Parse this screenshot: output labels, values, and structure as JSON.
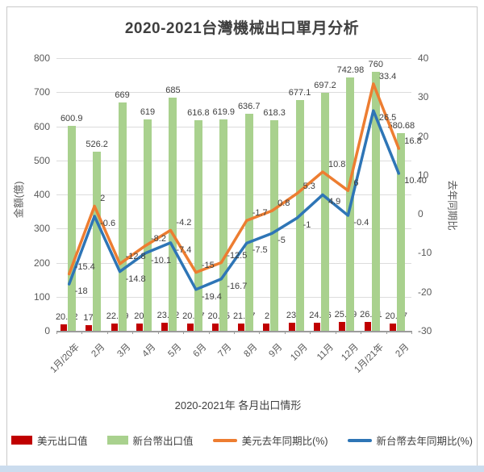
{
  "chart_data": {
    "type": "bar+line combo",
    "title": "2020-2021台灣機械出口單月分析",
    "xlabel": "2020-2021年 各月出口情形",
    "categories": [
      "1月/20年",
      "2月",
      "3月",
      "4月",
      "5月",
      "6月",
      "7月",
      "8月",
      "9月",
      "10月",
      "11月",
      "12月",
      "1月/21年",
      "2月"
    ],
    "series": [
      {
        "name": "美元出口值",
        "type": "bar",
        "axis": "left",
        "color": "#C00000",
        "values": [
          "20.02",
          "17.5",
          "22.19",
          "20.5",
          "23.92",
          "20.67",
          "20.95",
          "21.57",
          "21",
          "23.3",
          "24.16",
          "25.99",
          "26.71",
          "20.47"
        ]
      },
      {
        "name": "新台幣出口值",
        "type": "bar",
        "axis": "left",
        "color": "#A9D18E",
        "values": [
          "600.9",
          "526.2",
          "669",
          "619",
          "685",
          "616.8",
          "619.9",
          "636.7",
          "618.3",
          "677.1",
          "697.2",
          "742.98",
          "760",
          "580.68"
        ]
      },
      {
        "name": "美元去年同期比(%)",
        "type": "line",
        "axis": "right",
        "color": "#ED7D31",
        "values": [
          "-15.4",
          "2",
          "-12.8",
          "-8.2",
          "-4.2",
          "-15",
          "-12.5",
          "-1.7",
          "0.8",
          "5.3",
          "10.8",
          "6",
          "33.4",
          "16.8"
        ]
      },
      {
        "name": "新台幣去年同期比(%)",
        "type": "line",
        "axis": "right",
        "color": "#2E75B6",
        "values": [
          "-18",
          "-0.6",
          "-14.8",
          "-10.1",
          "-7.4",
          "-19.4",
          "-16.7",
          "-7.5",
          "-5",
          "-1",
          "4.9",
          "-0.4",
          "26.5",
          "10.40"
        ]
      }
    ],
    "left_axis": {
      "title": "金額(億)",
      "min": 0,
      "max": 800,
      "ticks": [
        "800",
        "700",
        "600",
        "500",
        "400",
        "300",
        "200",
        "100",
        "0"
      ]
    },
    "right_axis": {
      "title": "去年同期比",
      "min": -30,
      "max": 40,
      "ticks": [
        "40",
        "30",
        "20",
        "10",
        "0",
        "-10",
        "-20",
        "-30"
      ]
    },
    "grid": true,
    "legend_position": "bottom"
  }
}
